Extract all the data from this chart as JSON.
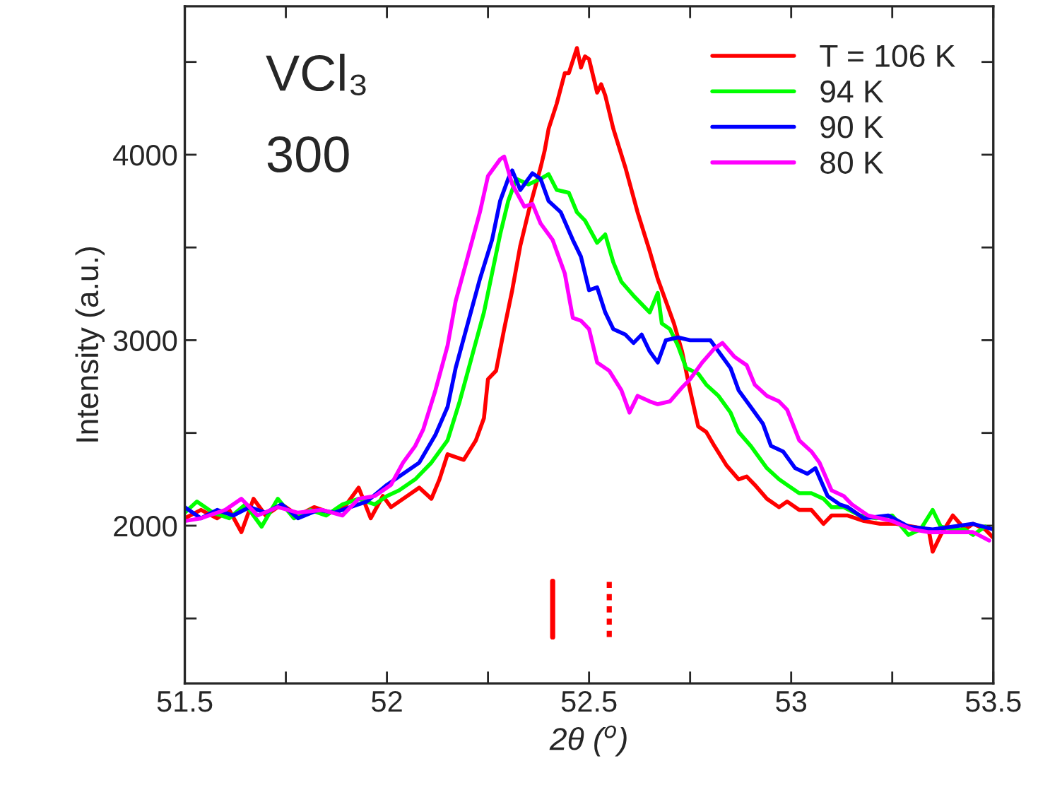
{
  "chart_data": {
    "type": "line",
    "xlabel": "2θ ($^{o}$)",
    "ylabel": "Intensity (a.u.)",
    "annotations": [
      "VCl₃",
      "300"
    ],
    "xlim": [
      51.5,
      53.5
    ],
    "ylim": [
      1150,
      4800
    ],
    "xticks": [
      51.5,
      {
        "value": 51.75,
        "label": null
      },
      52,
      {
        "value": 52.25,
        "label": null
      },
      52.5,
      {
        "value": 52.75,
        "label": null
      },
      53,
      {
        "value": 53.25,
        "label": null
      },
      53.5
    ],
    "yticks": [
      {
        "value": 1500,
        "label": null
      },
      2000,
      {
        "value": 2500,
        "label": null
      },
      3000,
      {
        "value": 3500,
        "label": null
      },
      4000,
      {
        "value": 4500,
        "label": null
      }
    ],
    "grid": false,
    "legend": "top right",
    "line_style": "solid",
    "marker": "none",
    "series": [
      {
        "name": "T = 106 K",
        "color": "#ff0000",
        "x": [
          51.5,
          51.54,
          51.58,
          51.61,
          51.64,
          51.67,
          51.7,
          51.74,
          51.78,
          51.82,
          51.86,
          51.9,
          51.93,
          51.96,
          51.99,
          52.01,
          52.05,
          52.08,
          52.11,
          52.13,
          52.15,
          52.19,
          52.22,
          52.24,
          52.25,
          52.27,
          52.29,
          52.31,
          52.33,
          52.35,
          52.38,
          52.39,
          52.4,
          52.42,
          52.44,
          52.45,
          52.47,
          52.48,
          52.49,
          52.5,
          52.52,
          52.53,
          52.54,
          52.56,
          52.59,
          52.62,
          52.65,
          52.67,
          52.69,
          52.71,
          52.73,
          52.75,
          52.77,
          52.79,
          52.81,
          52.84,
          52.87,
          52.89,
          52.91,
          52.94,
          52.97,
          52.99,
          53.02,
          53.05,
          53.08,
          53.1,
          53.14,
          53.18,
          53.22,
          53.26,
          53.3,
          53.34,
          53.35,
          53.37,
          53.4,
          53.43,
          53.45,
          53.48,
          53.5
        ],
        "values": [
          2040,
          2085,
          2040,
          2085,
          1965,
          2145,
          2055,
          2115,
          2055,
          2100,
          2070,
          2115,
          2205,
          2040,
          2160,
          2100,
          2160,
          2205,
          2145,
          2250,
          2385,
          2355,
          2460,
          2580,
          2790,
          2835,
          3060,
          3270,
          3510,
          3690,
          3930,
          4020,
          4140,
          4275,
          4440,
          4440,
          4575,
          4470,
          4530,
          4515,
          4335,
          4380,
          4320,
          4140,
          3930,
          3690,
          3480,
          3330,
          3210,
          3090,
          2940,
          2730,
          2535,
          2505,
          2430,
          2325,
          2250,
          2265,
          2220,
          2145,
          2100,
          2130,
          2085,
          2085,
          2010,
          2055,
          2055,
          2025,
          2010,
          2010,
          1995,
          1980,
          1860,
          1950,
          2055,
          1980,
          2010,
          1980,
          1935
        ]
      },
      {
        "name": "94 K",
        "color": "#00ff00",
        "x": [
          51.5,
          51.53,
          51.57,
          51.61,
          51.65,
          51.69,
          51.73,
          51.77,
          51.81,
          51.85,
          51.89,
          51.93,
          51.97,
          52.0,
          52.03,
          52.07,
          52.11,
          52.15,
          52.18,
          52.21,
          52.24,
          52.26,
          52.28,
          52.3,
          52.32,
          52.35,
          52.38,
          52.4,
          52.42,
          52.45,
          52.47,
          52.49,
          52.52,
          52.54,
          52.56,
          52.58,
          52.61,
          52.63,
          52.65,
          52.67,
          52.68,
          52.7,
          52.72,
          52.74,
          52.77,
          52.79,
          52.82,
          52.85,
          52.87,
          52.9,
          52.92,
          52.94,
          52.97,
          52.99,
          53.02,
          53.05,
          53.08,
          53.1,
          53.13,
          53.17,
          53.21,
          53.25,
          53.29,
          53.32,
          53.35,
          53.37,
          53.4,
          53.43,
          53.45,
          53.48
        ],
        "values": [
          2070,
          2130,
          2070,
          2040,
          2115,
          1995,
          2145,
          2040,
          2085,
          2055,
          2115,
          2145,
          2115,
          2160,
          2190,
          2250,
          2340,
          2460,
          2670,
          2910,
          3150,
          3360,
          3570,
          3750,
          3870,
          3840,
          3870,
          3895,
          3810,
          3795,
          3690,
          3645,
          3525,
          3570,
          3420,
          3315,
          3240,
          3195,
          3150,
          3255,
          3090,
          3060,
          2970,
          2850,
          2820,
          2760,
          2700,
          2610,
          2505,
          2430,
          2370,
          2310,
          2250,
          2220,
          2175,
          2175,
          2145,
          2100,
          2100,
          2055,
          2040,
          2055,
          1950,
          1980,
          2085,
          1995,
          1980,
          1980,
          1950,
          1995
        ]
      },
      {
        "name": "90 K",
        "color": "#0000ff",
        "x": [
          51.5,
          51.54,
          51.58,
          51.62,
          51.66,
          51.7,
          51.74,
          51.78,
          51.83,
          51.87,
          51.91,
          51.95,
          52.0,
          52.04,
          52.08,
          52.12,
          52.15,
          52.17,
          52.2,
          52.23,
          52.26,
          52.28,
          52.3,
          52.31,
          52.33,
          52.36,
          52.38,
          52.4,
          52.43,
          52.46,
          52.48,
          52.5,
          52.52,
          52.54,
          52.56,
          52.59,
          52.61,
          52.63,
          52.65,
          52.67,
          52.69,
          52.72,
          52.75,
          52.77,
          52.8,
          52.82,
          52.85,
          52.87,
          52.9,
          52.93,
          52.95,
          52.98,
          53.01,
          53.04,
          53.06,
          53.09,
          53.12,
          53.14,
          53.18,
          53.24,
          53.29,
          53.35,
          53.4,
          53.45,
          53.5
        ],
        "values": [
          2100,
          2040,
          2085,
          2055,
          2100,
          2070,
          2115,
          2040,
          2085,
          2070,
          2100,
          2130,
          2220,
          2280,
          2340,
          2490,
          2640,
          2850,
          3090,
          3330,
          3540,
          3750,
          3870,
          3915,
          3810,
          3900,
          3870,
          3750,
          3690,
          3540,
          3450,
          3270,
          3285,
          3150,
          3060,
          3030,
          2985,
          3030,
          2940,
          2880,
          3000,
          3015,
          3000,
          3000,
          3000,
          2940,
          2850,
          2730,
          2640,
          2550,
          2430,
          2400,
          2310,
          2280,
          2310,
          2160,
          2115,
          2100,
          2040,
          2055,
          1995,
          1980,
          1995,
          2010,
          1980
        ]
      },
      {
        "name": "80 K",
        "color": "#ff00ff",
        "x": [
          51.5,
          51.54,
          51.6,
          51.64,
          51.68,
          51.73,
          51.78,
          51.84,
          51.89,
          51.93,
          51.97,
          52.01,
          52.04,
          52.07,
          52.09,
          52.12,
          52.15,
          52.17,
          52.2,
          52.23,
          52.25,
          52.28,
          52.29,
          52.31,
          52.34,
          52.36,
          52.38,
          52.41,
          52.44,
          52.46,
          52.48,
          52.5,
          52.52,
          52.55,
          52.58,
          52.6,
          52.62,
          52.65,
          52.67,
          52.7,
          52.73,
          52.75,
          52.78,
          52.81,
          52.83,
          52.86,
          52.89,
          52.91,
          52.94,
          52.97,
          52.99,
          53.02,
          53.05,
          53.07,
          53.1,
          53.13,
          53.15,
          53.19,
          53.25,
          53.3,
          53.34,
          53.4,
          53.45,
          53.49
        ],
        "values": [
          2025,
          2040,
          2085,
          2145,
          2055,
          2100,
          2070,
          2085,
          2055,
          2145,
          2160,
          2220,
          2340,
          2430,
          2520,
          2730,
          2970,
          3210,
          3450,
          3690,
          3885,
          3975,
          3990,
          3840,
          3720,
          3735,
          3630,
          3540,
          3360,
          3120,
          3105,
          3060,
          2880,
          2835,
          2730,
          2610,
          2700,
          2670,
          2655,
          2670,
          2745,
          2790,
          2880,
          2955,
          2985,
          2910,
          2865,
          2760,
          2700,
          2670,
          2625,
          2460,
          2400,
          2340,
          2190,
          2160,
          2115,
          2055,
          2025,
          1980,
          1965,
          1965,
          1965,
          1920
        ]
      },
      {
        "color": "#ff0000",
        "line_style": "solid",
        "x": [
          52.41,
          52.41
        ],
        "values": [
          1400,
          1700
        ]
      },
      {
        "color": "#ff0000",
        "line_style": "dotted",
        "x": [
          52.55,
          52.55
        ],
        "values": [
          1400,
          1720
        ]
      }
    ]
  }
}
